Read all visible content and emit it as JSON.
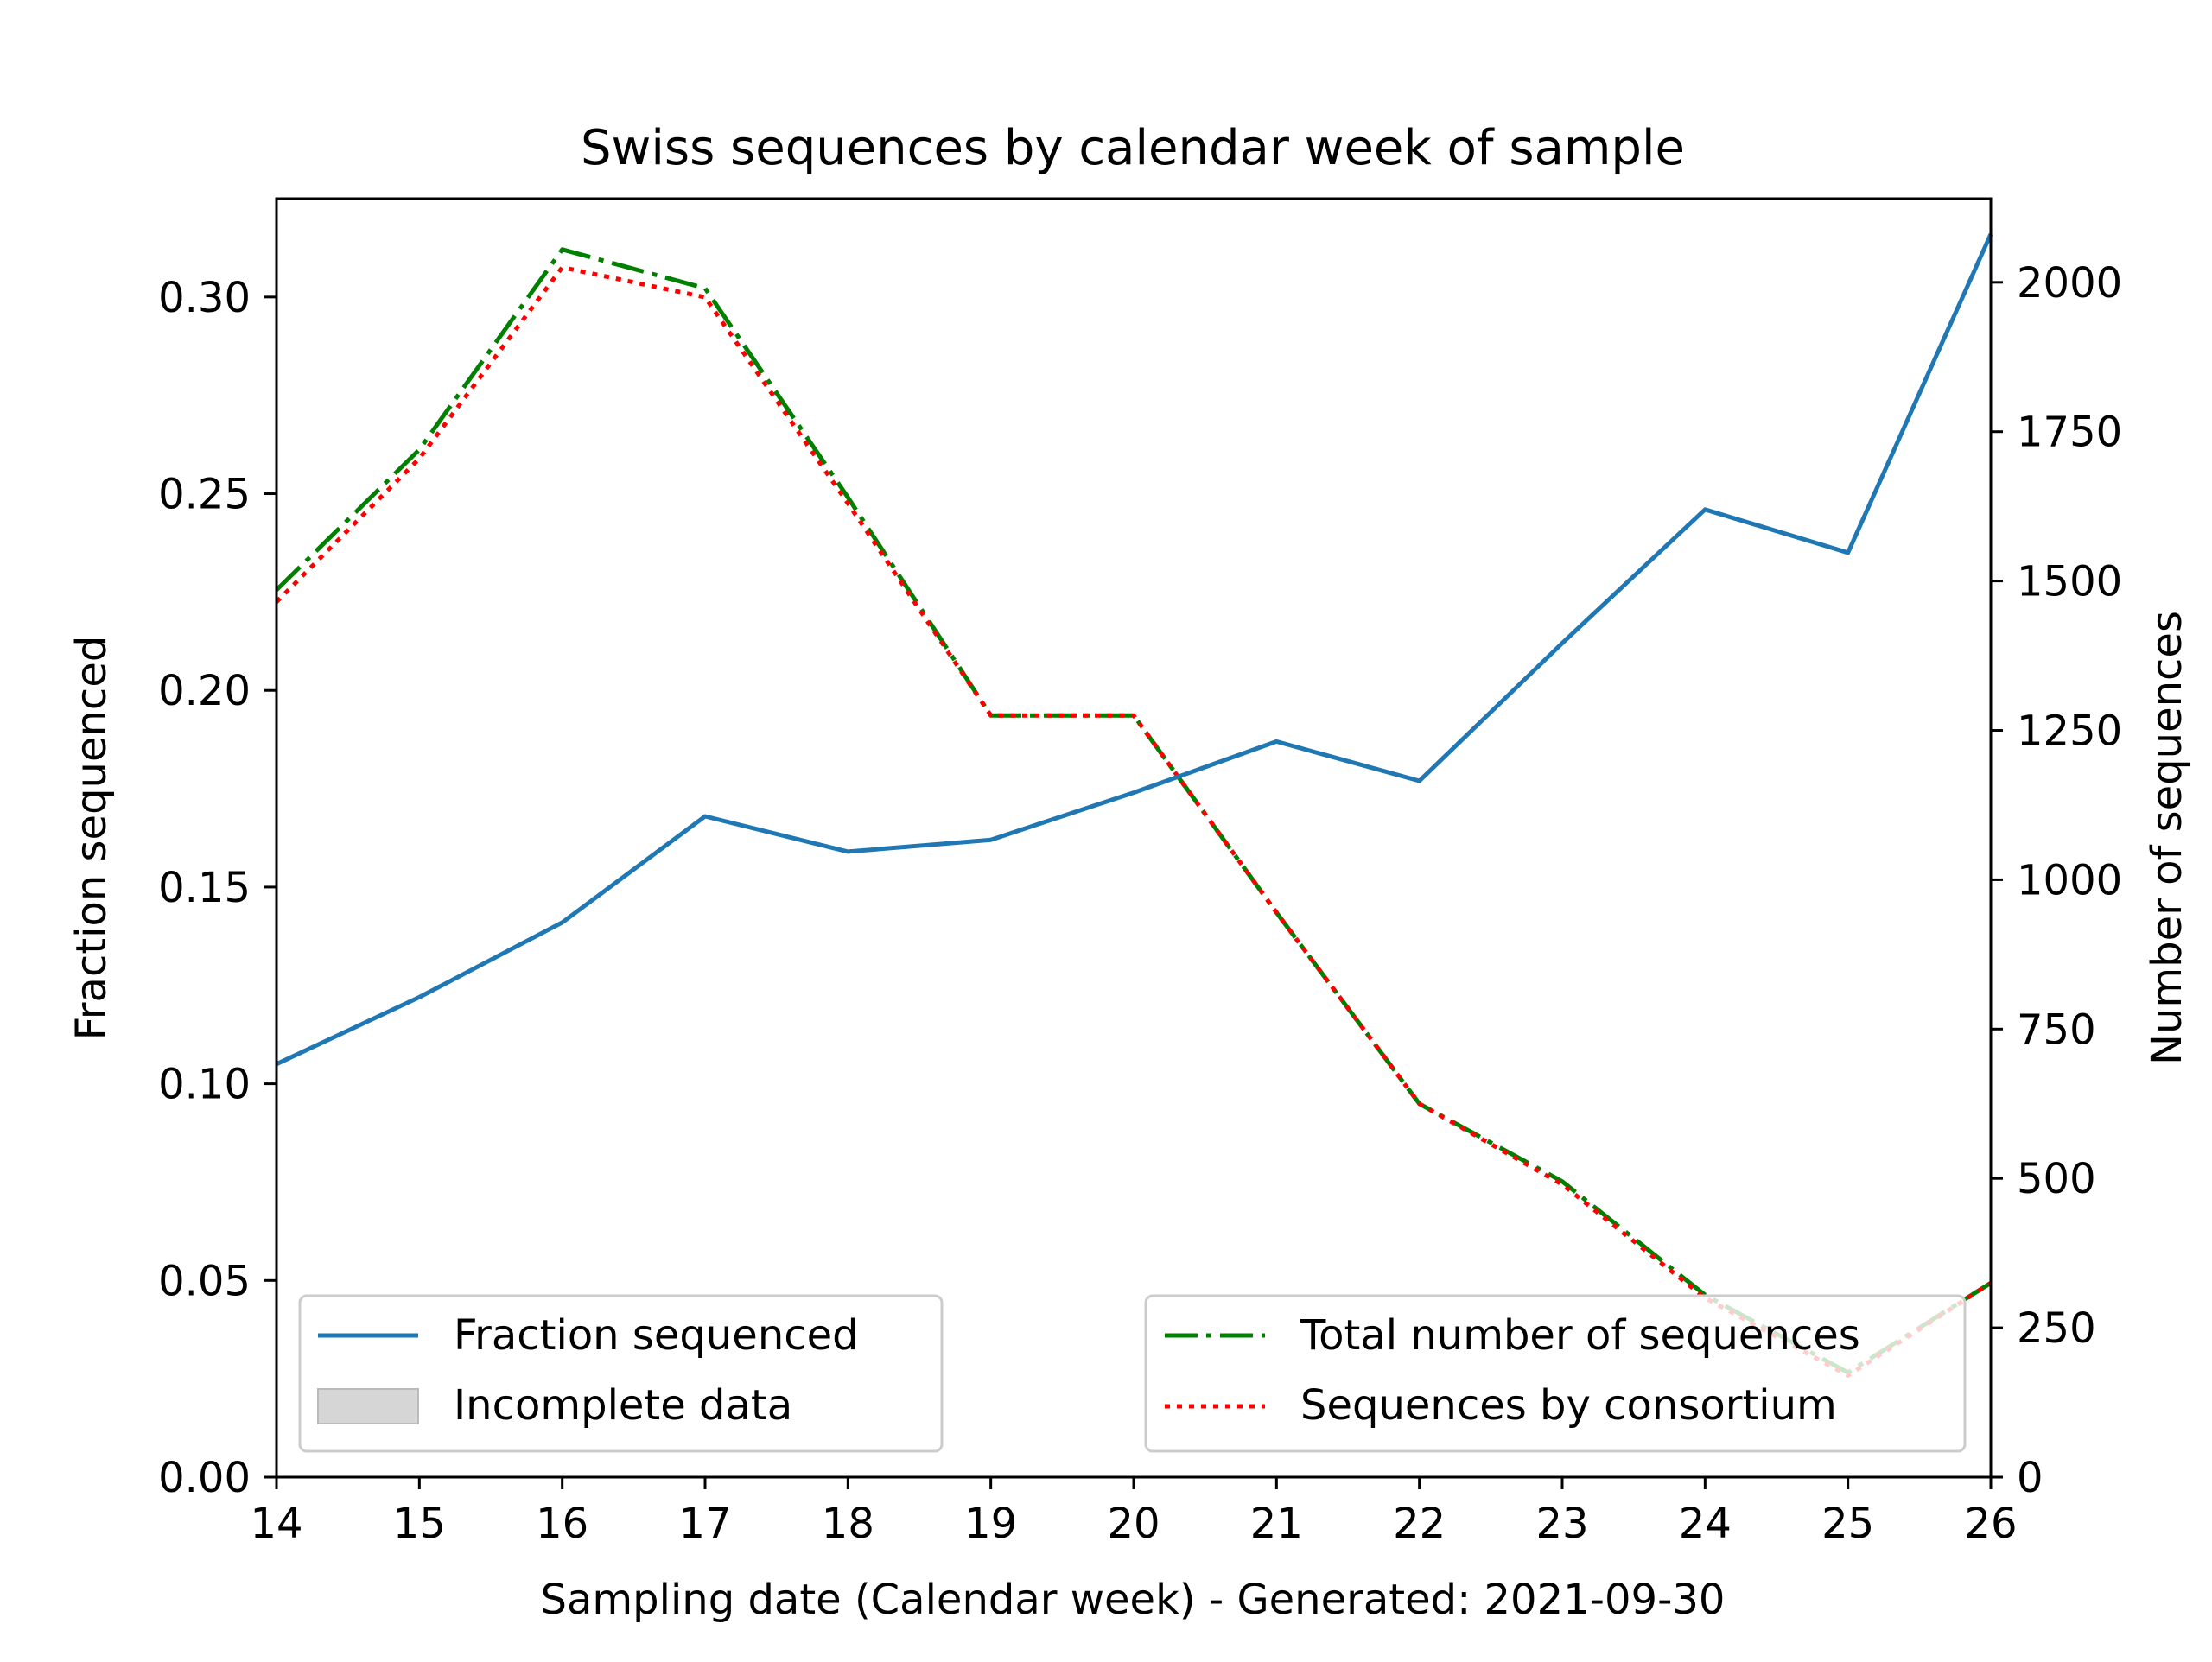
{
  "chart_data": {
    "type": "line",
    "title": "Swiss sequences by calendar week of sample",
    "xlabel": "Sampling date (Calendar week) - Generated: 2021-09-30",
    "ylabel_left": "Fraction sequenced",
    "ylabel_right": "Number of sequences",
    "x": [
      14,
      15,
      16,
      17,
      18,
      19,
      20,
      21,
      22,
      23,
      24,
      25,
      26
    ],
    "xlim": [
      14,
      26
    ],
    "ylim_left": [
      0,
      0.325
    ],
    "ylim_right": [
      0,
      2140
    ],
    "xticks": [
      "14",
      "15",
      "16",
      "17",
      "18",
      "19",
      "20",
      "21",
      "22",
      "23",
      "24",
      "25",
      "26"
    ],
    "yticks_left": [
      "0.00",
      "0.05",
      "0.10",
      "0.15",
      "0.20",
      "0.25",
      "0.30"
    ],
    "yticks_right": [
      "0",
      "250",
      "500",
      "750",
      "1000",
      "1250",
      "1500",
      "1750",
      "2000"
    ],
    "grid": false,
    "series": [
      {
        "name": "Fraction sequenced",
        "axis": "left",
        "style": "solid",
        "color": "#1f77b4",
        "values": [
          0.105,
          0.122,
          0.141,
          0.168,
          0.159,
          0.162,
          0.174,
          0.187,
          0.177,
          0.212,
          0.246,
          0.235,
          0.316
        ]
      },
      {
        "name": "Total number of sequences",
        "axis": "right",
        "style": "dashdot",
        "color": "#008000",
        "values": [
          1485,
          1720,
          2055,
          1990,
          1640,
          1275,
          1275,
          945,
          625,
          495,
          305,
          175,
          325
        ]
      },
      {
        "name": "Sequences by consortium",
        "axis": "right",
        "style": "dotted",
        "color": "#ff0000",
        "values": [
          1465,
          1705,
          2025,
          1975,
          1630,
          1275,
          1275,
          945,
          625,
          490,
          300,
          170,
          325
        ]
      }
    ],
    "legend_left": {
      "placement": "lower-left",
      "entries": [
        "Fraction sequenced",
        "Incomplete data"
      ]
    },
    "legend_right": {
      "placement": "lower-right",
      "entries": [
        "Total number of sequences",
        "Sequences by consortium"
      ]
    }
  }
}
